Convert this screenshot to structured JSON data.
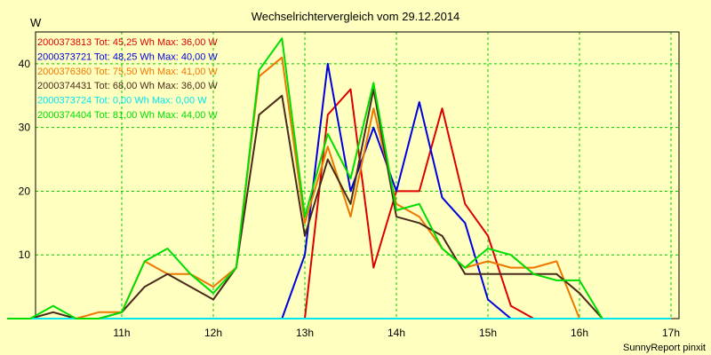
{
  "chart_data": {
    "type": "line",
    "title": "Wechselrichtervergleich vom 29.12.2014",
    "ylabel": "W",
    "xlabel": "",
    "credit": "SunnyReport pinxit",
    "x_start_hour": 9.75,
    "x_step_hours": 0.25,
    "xlim": [
      9.75,
      17.0
    ],
    "ylim": [
      0,
      45
    ],
    "y_ticks": [
      10,
      20,
      30,
      40
    ],
    "x_ticks": [
      {
        "hour": 11,
        "label": "11h"
      },
      {
        "hour": 12,
        "label": "12h"
      },
      {
        "hour": 13,
        "label": "13h"
      },
      {
        "hour": 14,
        "label": "14h"
      },
      {
        "hour": 15,
        "label": "15h"
      },
      {
        "hour": 16,
        "label": "16h"
      },
      {
        "hour": 17,
        "label": "17h"
      }
    ],
    "grid": true,
    "background": "#ffffc0",
    "grid_color": "#00cc00",
    "legend_position": "top-left",
    "series": [
      {
        "name": "2000373813",
        "legend": "2000373813 Tot: 45,25 Wh Max: 36,00 W",
        "color": "#dd0000",
        "values": [
          0,
          0,
          0,
          0,
          0,
          0,
          0,
          0,
          0,
          0,
          0,
          0,
          0,
          0,
          32,
          36,
          8,
          20,
          20,
          33,
          18,
          13,
          2,
          0,
          null,
          null,
          null,
          null,
          null,
          null
        ]
      },
      {
        "name": "2000373721",
        "legend": "2000373721 Tot: 48,25 Wh Max: 40,00 W",
        "color": "#0000dd",
        "values": [
          0,
          0,
          0,
          0,
          0,
          0,
          0,
          0,
          0,
          0,
          0,
          0,
          0,
          10,
          40,
          20,
          30,
          20,
          34,
          19,
          15,
          3,
          0,
          null,
          null,
          null,
          null,
          null,
          null,
          0
        ]
      },
      {
        "name": "2000376360",
        "legend": "2000376360 Tot: 75,50 Wh Max: 41,00 W",
        "color": "#ee7700",
        "values": [
          0,
          0,
          0,
          0,
          1,
          1,
          9,
          7,
          7,
          5,
          8,
          38,
          41,
          15,
          27,
          16,
          33,
          18,
          16,
          11,
          8,
          9,
          8,
          8,
          9,
          0,
          0,
          null,
          null,
          null
        ]
      },
      {
        "name": "2000374431",
        "legend": "2000374431 Tot: 68,00 Wh Max: 36,00 W",
        "color": "#4a2a1a",
        "values": [
          0,
          0,
          1,
          0,
          0,
          1,
          5,
          7,
          5,
          3,
          8,
          32,
          35,
          13,
          25,
          18,
          36,
          16,
          15,
          13,
          7,
          7,
          7,
          7,
          7,
          4,
          0,
          null,
          null,
          null
        ]
      },
      {
        "name": "2000373724",
        "legend": "2000373724 Tot: 0,00 Wh Max: 0,00 W",
        "color": "#00e5ee",
        "values": [
          0,
          0,
          0,
          0,
          0,
          0,
          0,
          0,
          0,
          0,
          0,
          0,
          0,
          0,
          0,
          0,
          0,
          0,
          0,
          0,
          0,
          0,
          0,
          0,
          0,
          0,
          0,
          0,
          0,
          0
        ]
      },
      {
        "name": "2000374404",
        "legend": "2000374404 Tot: 81,00 Wh Max: 44,00 W",
        "color": "#00dd00",
        "values": [
          0,
          0,
          2,
          0,
          0,
          1,
          9,
          11,
          7,
          4,
          8,
          39,
          44,
          16,
          29,
          22,
          37,
          17,
          18,
          11,
          8,
          11,
          10,
          7,
          6,
          6,
          0,
          null,
          null,
          null
        ]
      }
    ]
  }
}
